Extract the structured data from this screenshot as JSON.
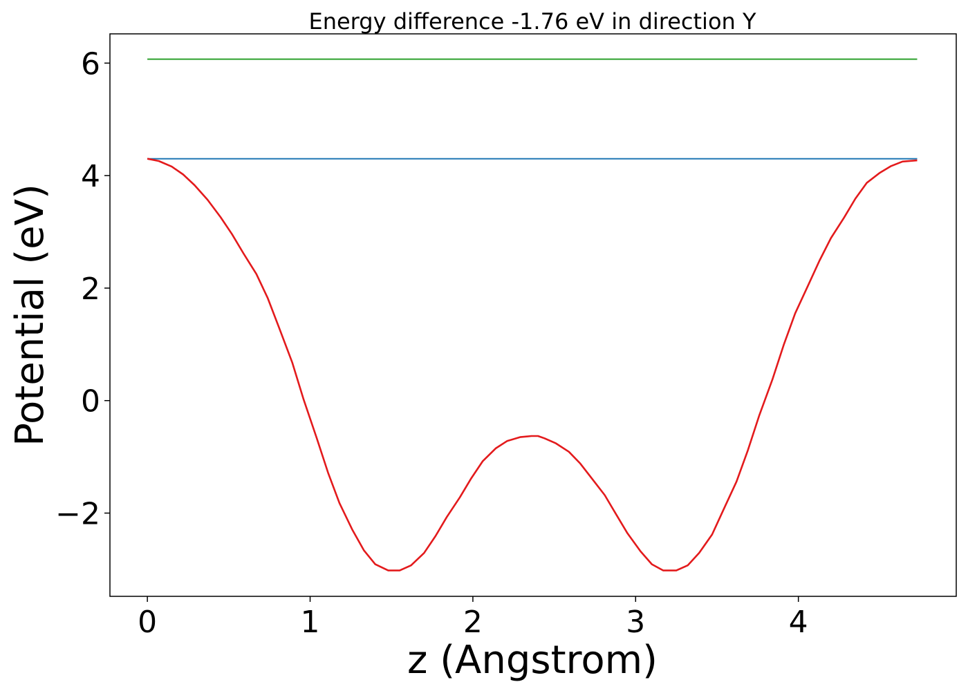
{
  "chart_data": {
    "type": "line",
    "title": "Energy difference -1.76 eV in direction Y",
    "xlabel": "z (Angstrom)",
    "ylabel": "Potential (eV)",
    "xlim": [
      -0.23,
      4.97
    ],
    "ylim": [
      -3.48,
      6.52
    ],
    "xticks": [
      0,
      1,
      2,
      3,
      4
    ],
    "yticks": [
      -2,
      0,
      2,
      4,
      6
    ],
    "ytick_labels": [
      "−2",
      "0",
      "2",
      "4",
      "6"
    ],
    "grid": false,
    "series": [
      {
        "color": "#2ca02c",
        "x": [
          0,
          4.73
        ],
        "y": [
          6.07,
          6.07
        ]
      },
      {
        "color": "#1f77b4",
        "x": [
          0,
          4.73
        ],
        "y": [
          4.3,
          4.3
        ]
      },
      {
        "color": "#e31a1c",
        "x": [
          0,
          0.07,
          0.15,
          0.22,
          0.29,
          0.37,
          0.45,
          0.52,
          0.59,
          0.67,
          0.74,
          0.81,
          0.89,
          0.96,
          1.04,
          1.11,
          1.18,
          1.26,
          1.33,
          1.4,
          1.48,
          1.55,
          1.62,
          1.7,
          1.77,
          1.84,
          1.92,
          1.99,
          2.06,
          2.14,
          2.21,
          2.29,
          2.36,
          2.4,
          2.44,
          2.51,
          2.59,
          2.66,
          2.73,
          2.81,
          2.88,
          2.95,
          3.03,
          3.1,
          3.17,
          3.25,
          3.32,
          3.39,
          3.47,
          3.54,
          3.62,
          3.69,
          3.76,
          3.84,
          3.91,
          3.98,
          4.06,
          4.13,
          4.2,
          4.28,
          4.35,
          4.42,
          4.5,
          4.57,
          4.64,
          4.73
        ],
        "y": [
          4.3,
          4.26,
          4.16,
          4.02,
          3.83,
          3.57,
          3.26,
          2.96,
          2.62,
          2.25,
          1.82,
          1.29,
          0.68,
          0.02,
          -0.66,
          -1.28,
          -1.82,
          -2.3,
          -2.66,
          -2.91,
          -3.02,
          -3.02,
          -2.93,
          -2.71,
          -2.41,
          -2.07,
          -1.72,
          -1.38,
          -1.08,
          -0.85,
          -0.72,
          -0.65,
          -0.63,
          -0.63,
          -0.67,
          -0.76,
          -0.91,
          -1.12,
          -1.38,
          -1.68,
          -2.02,
          -2.36,
          -2.68,
          -2.91,
          -3.02,
          -3.02,
          -2.93,
          -2.71,
          -2.38,
          -1.94,
          -1.44,
          -0.88,
          -0.26,
          0.37,
          0.99,
          1.55,
          2.05,
          2.49,
          2.89,
          3.25,
          3.59,
          3.87,
          4.05,
          4.17,
          4.25,
          4.27
        ]
      }
    ]
  }
}
